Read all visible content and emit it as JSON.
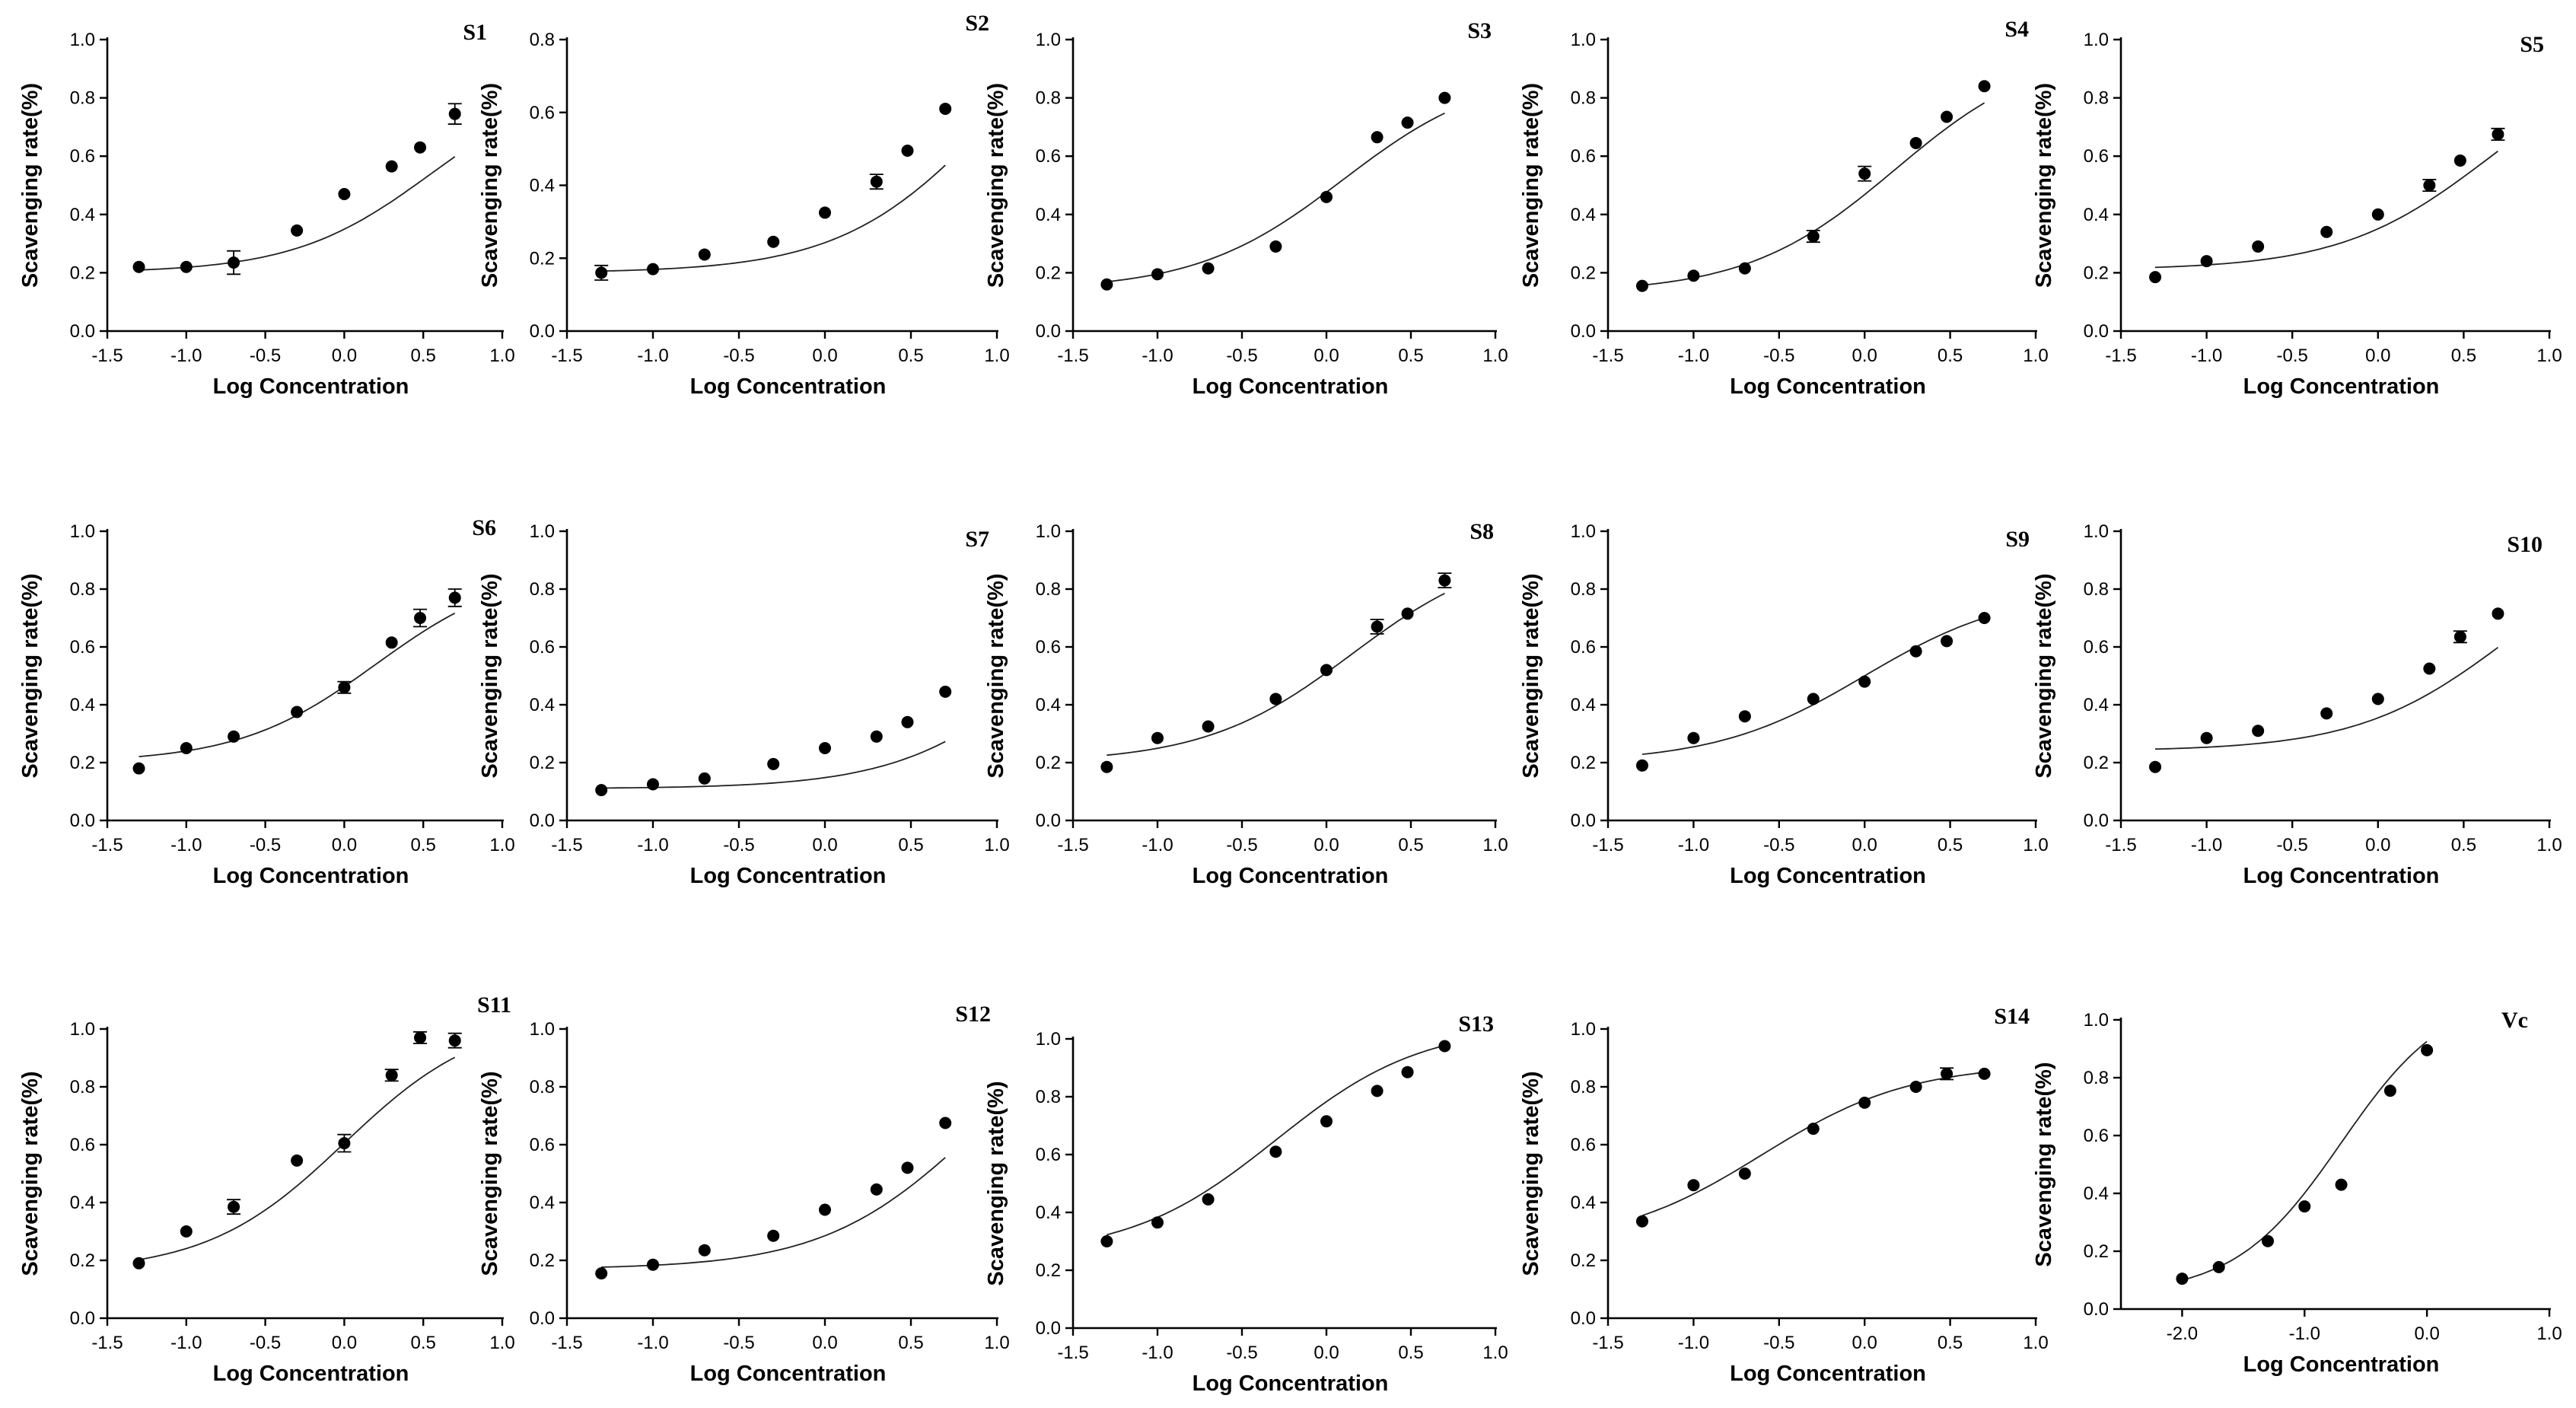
{
  "chart_data": [
    {
      "type": "scatter",
      "title": "S1",
      "xlabel": "Log Concentration",
      "ylabel": "Scavenging rate(%)",
      "xlim": [
        -1.5,
        1.0
      ],
      "ylim": [
        0.0,
        1.0
      ],
      "xticks": [
        "-1.5",
        "-1.0",
        "-0.5",
        "0.0",
        "0.5",
        "1.0"
      ],
      "yticks": [
        "0.0",
        "0.2",
        "0.4",
        "0.6",
        "0.8",
        "1.0"
      ],
      "x": [
        -1.3,
        -1.0,
        -0.7,
        -0.3,
        0.0,
        0.3,
        0.48,
        0.7
      ],
      "values": [
        0.22,
        0.22,
        0.235,
        0.345,
        0.47,
        0.565,
        0.63,
        0.745
      ],
      "errors": [
        0.0,
        0.0,
        0.04,
        0.0,
        0.0,
        0.0,
        0.0,
        0.035
      ],
      "fit": [
        0.2,
        0.88,
        0.55
      ]
    },
    {
      "type": "scatter",
      "title": "S2",
      "xlabel": "Log Concentration",
      "ylabel": "Scavenging rate(%)",
      "xlim": [
        -1.5,
        1.0
      ],
      "ylim": [
        0.0,
        0.8
      ],
      "xticks": [
        "-1.5",
        "-1.0",
        "-0.5",
        "0.0",
        "0.5",
        "1.0"
      ],
      "yticks": [
        "0.0",
        "0.2",
        "0.4",
        "0.6",
        "0.8"
      ],
      "x": [
        -1.3,
        -1.0,
        -0.7,
        -0.3,
        0.0,
        0.3,
        0.48,
        0.7
      ],
      "values": [
        0.16,
        0.17,
        0.21,
        0.245,
        0.325,
        0.41,
        0.495,
        0.61
      ],
      "errors": [
        0.02,
        0.0,
        0.0,
        0.0,
        0.0,
        0.02,
        0.0,
        0.0
      ],
      "fit": [
        0.16,
        0.98,
        0.95
      ]
    },
    {
      "type": "scatter",
      "title": "S3",
      "xlabel": "Log Concentration",
      "ylabel": "Scavenging rate(%)",
      "xlim": [
        -1.5,
        1.0
      ],
      "ylim": [
        0.0,
        1.0
      ],
      "xticks": [
        "-1.5",
        "-1.0",
        "-0.5",
        "0.0",
        "0.5",
        "1.0"
      ],
      "yticks": [
        "0.0",
        "0.2",
        "0.4",
        "0.6",
        "0.8",
        "1.0"
      ],
      "x": [
        -1.3,
        -1.0,
        -0.7,
        -0.3,
        0.0,
        0.3,
        0.48,
        0.7
      ],
      "values": [
        0.16,
        0.195,
        0.215,
        0.29,
        0.46,
        0.665,
        0.715,
        0.8
      ],
      "errors": [
        0.0,
        0.0,
        0.0,
        0.0,
        0.0,
        0.0,
        0.0,
        0.0
      ],
      "fit": [
        0.14,
        0.9,
        0.1
      ]
    },
    {
      "type": "scatter",
      "title": "S4",
      "xlabel": "Log Concentration",
      "ylabel": "Scavenging rate(%)",
      "xlim": [
        -1.5,
        1.0
      ],
      "ylim": [
        0.0,
        1.0
      ],
      "xticks": [
        "-1.5",
        "-1.0",
        "-0.5",
        "0.0",
        "0.5",
        "1.0"
      ],
      "yticks": [
        "0.0",
        "0.2",
        "0.4",
        "0.6",
        "0.8",
        "1.0"
      ],
      "x": [
        -1.3,
        -1.0,
        -0.7,
        -0.3,
        0.0,
        0.3,
        0.48,
        0.7
      ],
      "values": [
        0.155,
        0.19,
        0.215,
        0.325,
        0.54,
        0.645,
        0.735,
        0.84
      ],
      "errors": [
        0.0,
        0.0,
        0.0,
        0.02,
        0.025,
        0.0,
        0.0,
        0.0
      ],
      "fit": [
        0.13,
        0.98,
        0.18
      ]
    },
    {
      "type": "scatter",
      "title": "S5",
      "xlabel": "Log Concentration",
      "ylabel": "Scavenging rate(%)",
      "xlim": [
        -1.5,
        1.0
      ],
      "ylim": [
        0.0,
        1.0
      ],
      "xticks": [
        "-1.5",
        "-1.0",
        "-0.5",
        "0.0",
        "0.5",
        "1.0"
      ],
      "yticks": [
        "0.0",
        "0.2",
        "0.4",
        "0.6",
        "0.8",
        "1.0"
      ],
      "x": [
        -1.3,
        -1.0,
        -0.7,
        -0.3,
        0.0,
        0.3,
        0.48,
        0.7
      ],
      "values": [
        0.185,
        0.24,
        0.29,
        0.34,
        0.4,
        0.5,
        0.585,
        0.675
      ],
      "errors": [
        0.0,
        0.0,
        0.0,
        0.0,
        0.0,
        0.02,
        0.0,
        0.02
      ],
      "fit": [
        0.21,
        0.98,
        0.65
      ]
    },
    {
      "type": "scatter",
      "title": "S6",
      "xlabel": "Log Concentration",
      "ylabel": "Scavenging rate(%)",
      "xlim": [
        -1.5,
        1.0
      ],
      "ylim": [
        0.0,
        1.0
      ],
      "xticks": [
        "-1.5",
        "-1.0",
        "-0.5",
        "0.0",
        "0.5",
        "1.0"
      ],
      "yticks": [
        "0.0",
        "0.2",
        "0.4",
        "0.6",
        "0.8",
        "1.0"
      ],
      "x": [
        -1.3,
        -1.0,
        -0.7,
        -0.3,
        0.0,
        0.3,
        0.48,
        0.7
      ],
      "values": [
        0.18,
        0.25,
        0.29,
        0.375,
        0.46,
        0.615,
        0.7,
        0.77
      ],
      "errors": [
        0.0,
        0.0,
        0.0,
        0.0,
        0.02,
        0.0,
        0.03,
        0.03
      ],
      "fit": [
        0.2,
        0.88,
        0.2
      ]
    },
    {
      "type": "scatter",
      "title": "S7",
      "xlabel": "Log Concentration",
      "ylabel": "Scavenging rate(%)",
      "xlim": [
        -1.5,
        1.0
      ],
      "ylim": [
        0.0,
        1.0
      ],
      "xticks": [
        "-1.5",
        "-1.0",
        "-0.5",
        "0.0",
        "0.5",
        "1.0"
      ],
      "yticks": [
        "0.0",
        "0.2",
        "0.4",
        "0.6",
        "0.8",
        "1.0"
      ],
      "x": [
        -1.3,
        -1.0,
        -0.7,
        -0.3,
        0.0,
        0.3,
        0.48,
        0.7
      ],
      "values": [
        0.105,
        0.125,
        0.145,
        0.195,
        0.25,
        0.29,
        0.34,
        0.445
      ],
      "errors": [
        0.0,
        0.0,
        0.0,
        0.0,
        0.0,
        0.0,
        0.0,
        0.0
      ],
      "fit": [
        0.11,
        1.0,
        1.35
      ]
    },
    {
      "type": "scatter",
      "title": "S8",
      "xlabel": "Log Concentration",
      "ylabel": "Scavenging rate(%)",
      "xlim": [
        -1.5,
        1.0
      ],
      "ylim": [
        0.0,
        1.0
      ],
      "xticks": [
        "-1.5",
        "-1.0",
        "-0.5",
        "0.0",
        "0.5",
        "1.0"
      ],
      "yticks": [
        "0.0",
        "0.2",
        "0.4",
        "0.6",
        "0.8",
        "1.0"
      ],
      "x": [
        -1.3,
        -1.0,
        -0.7,
        -0.3,
        0.0,
        0.3,
        0.48,
        0.7
      ],
      "values": [
        0.185,
        0.285,
        0.325,
        0.42,
        0.52,
        0.67,
        0.715,
        0.83
      ],
      "errors": [
        0.0,
        0.0,
        0.0,
        0.0,
        0.0,
        0.025,
        0.0,
        0.025
      ],
      "fit": [
        0.2,
        0.95,
        0.15
      ]
    },
    {
      "type": "scatter",
      "title": "S9",
      "xlabel": "Log Concentration",
      "ylabel": "Scavenging rate(%)",
      "xlim": [
        -1.5,
        1.0
      ],
      "ylim": [
        0.0,
        1.0
      ],
      "xticks": [
        "-1.5",
        "-1.0",
        "-0.5",
        "0.0",
        "0.5",
        "1.0"
      ],
      "yticks": [
        "0.0",
        "0.2",
        "0.4",
        "0.6",
        "0.8",
        "1.0"
      ],
      "x": [
        -1.3,
        -1.0,
        -0.7,
        -0.3,
        0.0,
        0.3,
        0.48,
        0.7
      ],
      "values": [
        0.19,
        0.285,
        0.36,
        0.42,
        0.48,
        0.585,
        0.62,
        0.7
      ],
      "errors": [
        0.0,
        0.0,
        0.0,
        0.0,
        0.0,
        0.0,
        0.0,
        0.0
      ],
      "fit": [
        0.2,
        0.8,
        0.0
      ]
    },
    {
      "type": "scatter",
      "title": "S10",
      "xlabel": "Log Concentration",
      "ylabel": "Scavenging rate(%)",
      "xlim": [
        -1.5,
        1.0
      ],
      "ylim": [
        0.0,
        1.0
      ],
      "xticks": [
        "-1.5",
        "-1.0",
        "-0.5",
        "0.0",
        "0.5",
        "1.0"
      ],
      "yticks": [
        "0.0",
        "0.2",
        "0.4",
        "0.6",
        "0.8",
        "1.0"
      ],
      "x": [
        -1.3,
        -1.0,
        -0.7,
        -0.3,
        0.0,
        0.3,
        0.48,
        0.7
      ],
      "values": [
        0.185,
        0.285,
        0.31,
        0.37,
        0.42,
        0.525,
        0.635,
        0.715
      ],
      "errors": [
        0.0,
        0.0,
        0.0,
        0.0,
        0.0,
        0.0,
        0.02,
        0.0
      ],
      "fit": [
        0.24,
        1.0,
        0.75
      ]
    },
    {
      "type": "scatter",
      "title": "S11",
      "xlabel": "Log Concentration",
      "ylabel": "Scavenging rate(%)",
      "xlim": [
        -1.5,
        1.0
      ],
      "ylim": [
        0.0,
        1.0
      ],
      "xticks": [
        "-1.5",
        "-1.0",
        "-0.5",
        "0.0",
        "0.5",
        "1.0"
      ],
      "yticks": [
        "0.0",
        "0.2",
        "0.4",
        "0.6",
        "0.8",
        "1.0"
      ],
      "x": [
        -1.3,
        -1.0,
        -0.7,
        -0.3,
        0.0,
        0.3,
        0.48,
        0.7
      ],
      "values": [
        0.19,
        0.3,
        0.385,
        0.545,
        0.605,
        0.84,
        0.97,
        0.96
      ],
      "errors": [
        0.0,
        0.0,
        0.025,
        0.0,
        0.03,
        0.02,
        0.02,
        0.025
      ],
      "fit": [
        0.16,
        1.05,
        0.0
      ]
    },
    {
      "type": "scatter",
      "title": "S12",
      "xlabel": "Log Concentration",
      "ylabel": "Scavenging rate(%)",
      "xlim": [
        -1.5,
        1.0
      ],
      "ylim": [
        0.0,
        1.0
      ],
      "xticks": [
        "-1.5",
        "-1.0",
        "-0.5",
        "0.0",
        "0.5",
        "1.0"
      ],
      "yticks": [
        "0.0",
        "0.2",
        "0.4",
        "0.6",
        "0.8",
        "1.0"
      ],
      "x": [
        -1.3,
        -1.0,
        -0.7,
        -0.3,
        0.0,
        0.3,
        0.48,
        0.7
      ],
      "values": [
        0.155,
        0.185,
        0.235,
        0.285,
        0.375,
        0.445,
        0.52,
        0.675
      ],
      "errors": [
        0.0,
        0.0,
        0.0,
        0.0,
        0.0,
        0.0,
        0.0,
        0.0
      ],
      "fit": [
        0.17,
        1.1,
        0.85
      ]
    },
    {
      "type": "scatter",
      "title": "S13",
      "xlabel": "Log Concentration",
      "ylabel": "Scavenging rate(%)",
      "xlim": [
        -1.5,
        1.0
      ],
      "ylim": [
        0.0,
        1.0
      ],
      "xticks": [
        "-1.5",
        "-1.0",
        "-0.5",
        "0.0",
        "0.5",
        "1.0"
      ],
      "yticks": [
        "0.0",
        "0.2",
        "0.4",
        "0.6",
        "0.8",
        "1.0"
      ],
      "x": [
        -1.3,
        -1.0,
        -0.7,
        -0.3,
        0.0,
        0.3,
        0.48,
        0.7
      ],
      "values": [
        0.3,
        0.365,
        0.445,
        0.61,
        0.715,
        0.82,
        0.885,
        0.975
      ],
      "errors": [
        0.0,
        0.0,
        0.0,
        0.0,
        0.0,
        0.0,
        0.0,
        0.0
      ],
      "fit": [
        0.25,
        1.05,
        -0.3
      ]
    },
    {
      "type": "scatter",
      "title": "S14",
      "xlabel": "Log Concentration",
      "ylabel": "Scavenging rate(%)",
      "xlim": [
        -1.5,
        1.0
      ],
      "ylim": [
        0.0,
        1.0
      ],
      "xticks": [
        "-1.5",
        "-1.0",
        "-0.5",
        "0.0",
        "0.5",
        "1.0"
      ],
      "yticks": [
        "0.0",
        "0.2",
        "0.4",
        "0.6",
        "0.8",
        "1.0"
      ],
      "x": [
        -1.3,
        -1.0,
        -0.7,
        -0.3,
        0.0,
        0.3,
        0.48,
        0.7
      ],
      "values": [
        0.335,
        0.46,
        0.5,
        0.655,
        0.745,
        0.8,
        0.845,
        0.845
      ],
      "errors": [
        0.0,
        0.0,
        0.0,
        0.0,
        0.0,
        0.0,
        0.02,
        0.0
      ],
      "fit": [
        0.25,
        0.88,
        -0.6
      ]
    },
    {
      "type": "scatter",
      "title": "Vc",
      "xlabel": "Log Concentration",
      "ylabel": "Scavenging rate(%)",
      "xlim": [
        -2.5,
        1.0
      ],
      "ylim": [
        0.0,
        1.0
      ],
      "xticks": [
        "-2.0",
        "-1.0",
        "0.0",
        "1.0"
      ],
      "yticks": [
        "0.0",
        "0.2",
        "0.4",
        "0.6",
        "0.8",
        "1.0"
      ],
      "x": [
        -2.0,
        -1.7,
        -1.3,
        -1.0,
        -0.7,
        -0.3,
        0.0
      ],
      "values": [
        0.105,
        0.145,
        0.235,
        0.355,
        0.43,
        0.755,
        0.895
      ],
      "errors": [
        0.0,
        0.0,
        0.0,
        0.0,
        0.0,
        0.0,
        0.0
      ],
      "fit": [
        0.05,
        1.1,
        -0.7
      ]
    }
  ]
}
